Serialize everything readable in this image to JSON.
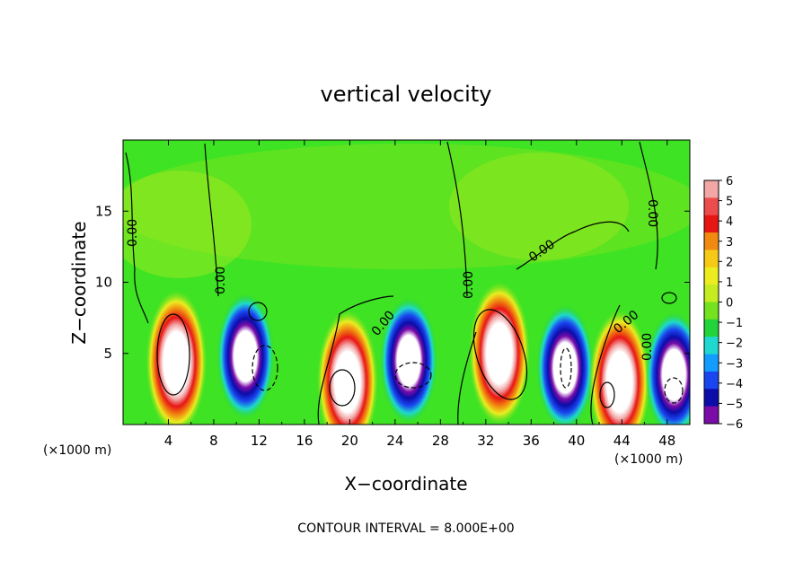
{
  "chart_data": {
    "type": "heatmap",
    "title": "vertical velocity",
    "xlabel": "X−coordinate",
    "ylabel": "Z−coordinate",
    "x_unit_label": "(×1000 m)",
    "z_unit_label": "(×1000 m)",
    "xlim": [
      0,
      50
    ],
    "ylim": [
      0,
      20
    ],
    "x_ticks": [
      4,
      8,
      12,
      16,
      20,
      24,
      28,
      32,
      36,
      40,
      44,
      48
    ],
    "y_ticks": [
      5,
      10,
      15
    ],
    "colorbar": {
      "range": [
        -6,
        6
      ],
      "ticks": [
        6,
        5,
        4,
        3,
        2,
        1,
        0,
        -1,
        -2,
        -3,
        -4,
        -5,
        -6
      ],
      "tick_labels": [
        "6",
        "5",
        "4",
        "3",
        "2",
        "1",
        "0",
        "−1",
        "−2",
        "−3",
        "−4",
        "−5",
        "−6"
      ],
      "colors": [
        "#f2a6a6",
        "#ec4c4c",
        "#e81515",
        "#f08a10",
        "#f7c917",
        "#ecec20",
        "#c4ec21",
        "#74e21f",
        "#22d43b",
        "#1fd8d0",
        "#139cff",
        "#1a46f0",
        "#0c0ca8",
        "#7a0ca8"
      ]
    },
    "contour_labels": [
      "0.00",
      "0.00",
      "0.00",
      "0.00",
      "0.00",
      "0.00",
      "0.00",
      "0.00"
    ],
    "footer": "CONTOUR INTERVAL = 8.000E+00",
    "features": [
      {
        "x": 4.7,
        "z": 4.4,
        "kind": "updraft"
      },
      {
        "x": 10.8,
        "z": 4.8,
        "kind": "downdraft"
      },
      {
        "x": 19.8,
        "z": 3.0,
        "kind": "updraft"
      },
      {
        "x": 25.2,
        "z": 4.5,
        "kind": "downdraft"
      },
      {
        "x": 33.2,
        "z": 5.0,
        "kind": "updraft"
      },
      {
        "x": 39.0,
        "z": 4.0,
        "kind": "downdraft"
      },
      {
        "x": 43.8,
        "z": 3.0,
        "kind": "updraft"
      },
      {
        "x": 48.6,
        "z": 3.5,
        "kind": "downdraft"
      }
    ]
  }
}
